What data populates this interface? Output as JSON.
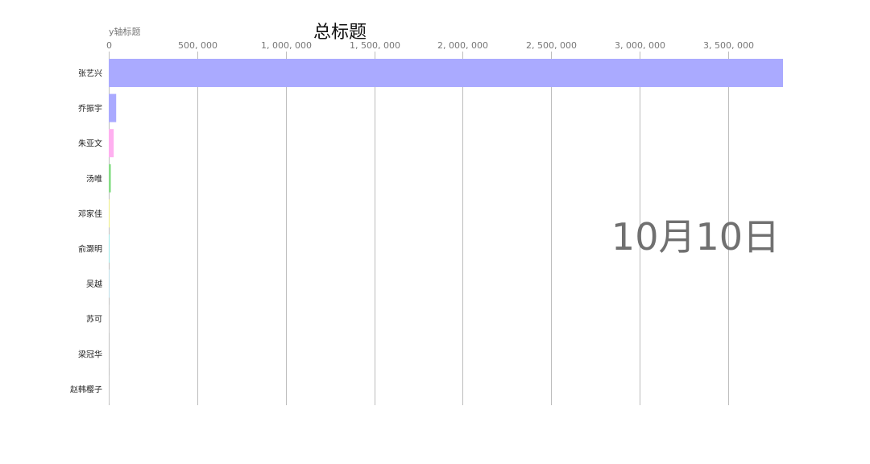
{
  "chart_data": {
    "type": "bar",
    "orientation": "horizontal",
    "title": "总标题",
    "ylabel": "y轴标题",
    "date": "10月10日",
    "xlim": [
      0,
      3810000
    ],
    "x_ticks": [
      0,
      500000,
      1000000,
      1500000,
      2000000,
      2500000,
      3000000,
      3500000
    ],
    "x_tick_labels": [
      "0",
      "500, 000",
      "1, 000, 000",
      "1, 500, 000",
      "2, 000, 000",
      "2, 500, 000",
      "3, 000, 000",
      "3, 500, 000"
    ],
    "grid": true,
    "categories": [
      "张艺兴",
      "乔振宇",
      "朱亚文",
      "汤唯",
      "邓家佳",
      "俞灏明",
      "吴越",
      "苏可",
      "梁冠华",
      "赵韩樱子"
    ],
    "values": [
      3810000,
      42000,
      28000,
      12000,
      5000,
      4000,
      3000,
      1500,
      1000,
      800
    ],
    "colors": [
      "#aaaaff",
      "#aaaaff",
      "#ffb0f0",
      "#88dd88",
      "#eeee88",
      "#99eeee",
      "#bbeeff",
      "#dddddd",
      "#cccccc",
      "#e0e0e0"
    ]
  }
}
